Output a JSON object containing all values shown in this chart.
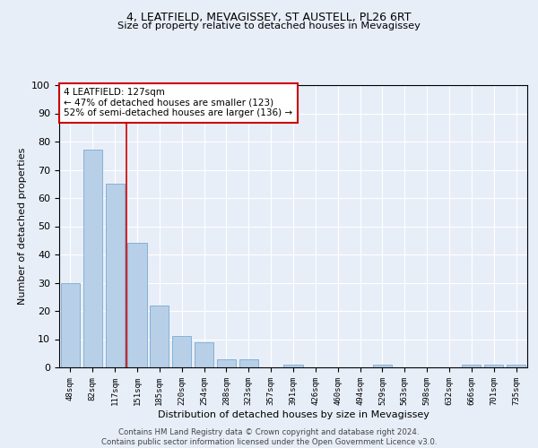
{
  "title1": "4, LEATFIELD, MEVAGISSEY, ST AUSTELL, PL26 6RT",
  "title2": "Size of property relative to detached houses in Mevagissey",
  "xlabel": "Distribution of detached houses by size in Mevagissey",
  "ylabel": "Number of detached properties",
  "categories": [
    "48sqm",
    "82sqm",
    "117sqm",
    "151sqm",
    "185sqm",
    "220sqm",
    "254sqm",
    "288sqm",
    "323sqm",
    "357sqm",
    "391sqm",
    "426sqm",
    "460sqm",
    "494sqm",
    "529sqm",
    "563sqm",
    "598sqm",
    "632sqm",
    "666sqm",
    "701sqm",
    "735sqm"
  ],
  "values": [
    30,
    77,
    65,
    44,
    22,
    11,
    9,
    3,
    3,
    0,
    1,
    0,
    0,
    0,
    1,
    0,
    0,
    0,
    1,
    1,
    1
  ],
  "bar_color": "#b8cfe8",
  "bar_edge_color": "#7aaad0",
  "vline_x": 2.5,
  "vline_color": "#cc0000",
  "annotation_text": "4 LEATFIELD: 127sqm\n← 47% of detached houses are smaller (123)\n52% of semi-detached houses are larger (136) →",
  "annotation_box_color": "#ffffff",
  "annotation_box_edge": "#cc0000",
  "bg_color": "#e8eef8",
  "grid_color": "#ffffff",
  "ylim": [
    0,
    100
  ],
  "yticks": [
    0,
    10,
    20,
    30,
    40,
    50,
    60,
    70,
    80,
    90,
    100
  ],
  "footer1": "Contains HM Land Registry data © Crown copyright and database right 2024.",
  "footer2": "Contains public sector information licensed under the Open Government Licence v3.0."
}
